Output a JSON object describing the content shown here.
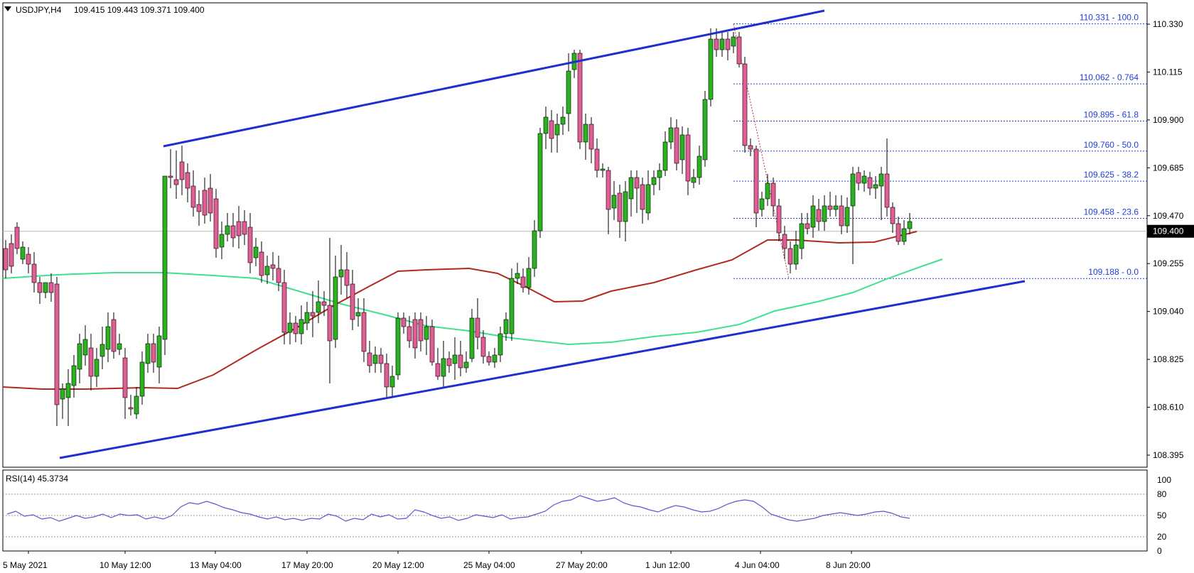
{
  "header": {
    "symbol": "USDJPY,H4",
    "ohlc": "109.415 109.443 109.371 109.400"
  },
  "current_price_label": "109.400",
  "colors": {
    "up": "#2ab31f",
    "down": "#e35d95",
    "wick": "#000000",
    "channel": "#1f2ecf",
    "ma_fast": "#b02a20",
    "ma_slow": "#3fe08f",
    "fib": "#1f3fd6",
    "rsi": "#6a4fd0"
  },
  "rsi": {
    "title": "RSI(14) 45.3734",
    "levels": [
      "100",
      "80",
      "50",
      "20",
      "0"
    ]
  },
  "chart_data": {
    "type": "candlestick",
    "price_axis_ticks": [
      "110.330",
      "110.115",
      "109.900",
      "109.685",
      "109.470",
      "109.255",
      "109.040",
      "108.825",
      "108.610",
      "108.395"
    ],
    "time_axis_ticks": [
      "5 May 2021",
      "10 May 12:00",
      "13 May 04:00",
      "17 May 20:00",
      "20 May 12:00",
      "25 May 04:00",
      "27 May 20:00",
      "1 Jun 12:00",
      "4 Jun 04:00",
      "8 Jun 20:00"
    ],
    "fibonacci": [
      {
        "label": "110.331 - 100.0",
        "price": 110.331
      },
      {
        "label": "110.062 - 0.764",
        "price": 110.062
      },
      {
        "label": "109.895 - 61.8",
        "price": 109.895
      },
      {
        "label": "109.760 - 50.0",
        "price": 109.76
      },
      {
        "label": "109.625 - 38.2",
        "price": 109.625
      },
      {
        "label": "109.458 - 23.6",
        "price": 109.458
      },
      {
        "label": "109.188 - 0.0",
        "price": 109.188
      }
    ],
    "last_price": 109.4,
    "ylim": [
      108.3,
      110.4
    ],
    "rsi_last": 45.3734
  }
}
